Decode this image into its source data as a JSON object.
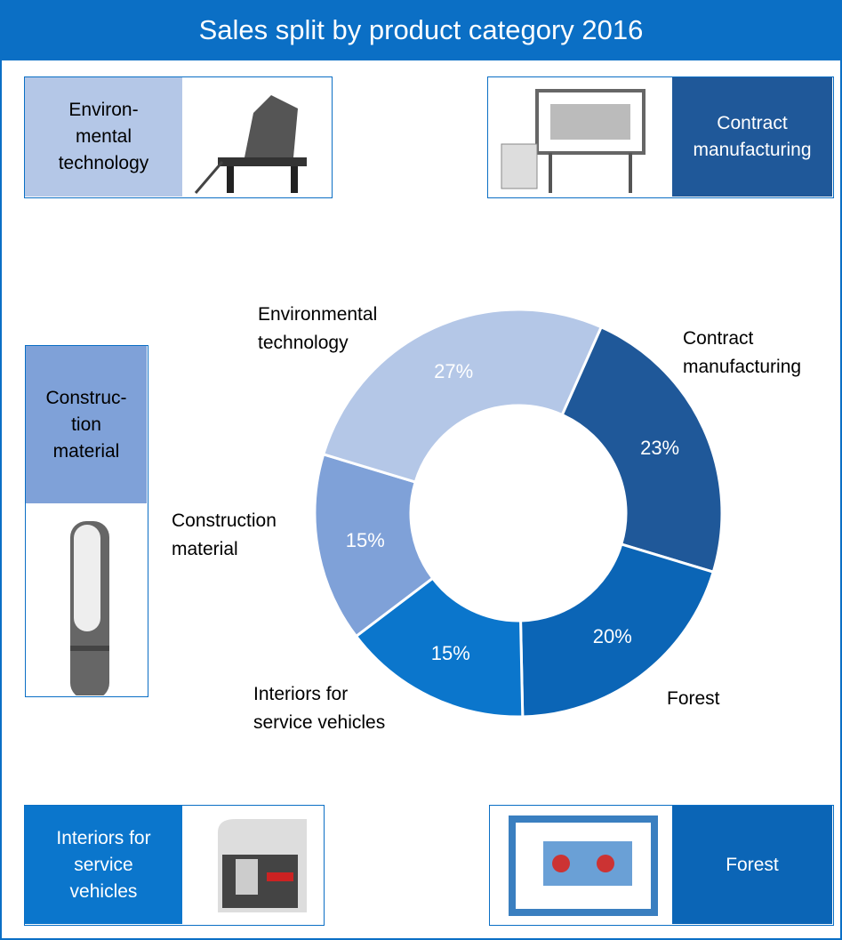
{
  "title": "Sales split by product category 2016",
  "panels": [
    {
      "label": "Environ-\nmental\ntechnology"
    },
    {
      "label": "Contract\nmanufacturing"
    },
    {
      "label": "Construc-\ntion\nmaterial"
    },
    {
      "label": "Interiors for\nservice\nvehicles"
    },
    {
      "label": "Forest"
    }
  ],
  "chart_data": {
    "type": "donut",
    "categories": [
      "Contract\nmanufacturing",
      "Forest",
      "Interiors for\nservice vehicles",
      "Construction\nmaterial",
      "Environmental\ntechnology"
    ],
    "values": [
      23,
      20,
      15,
      15,
      27
    ],
    "value_labels": [
      "23%",
      "20%",
      "15%",
      "15%",
      "27%"
    ],
    "colors": [
      "#1f5899",
      "#0b65b6",
      "#0b76cc",
      "#7fa1d8",
      "#b4c7e7"
    ]
  }
}
